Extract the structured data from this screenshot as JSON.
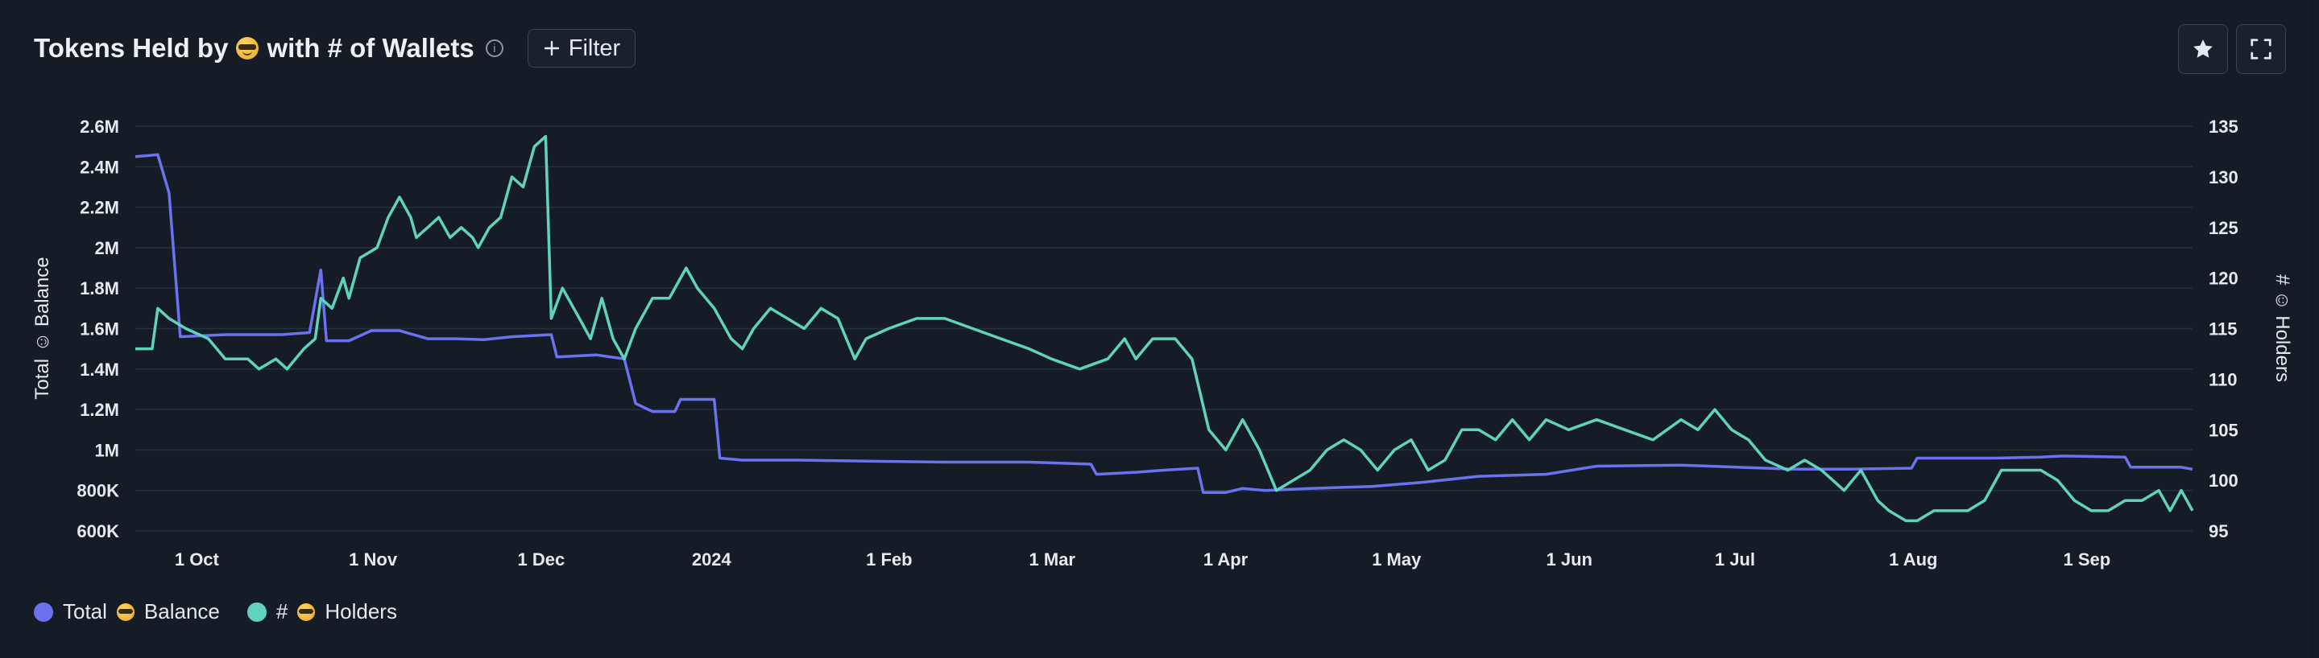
{
  "header": {
    "title_before": "Tokens Held by",
    "title_after": "with # of Wallets",
    "info_icon": "info-icon",
    "filter_label": "Filter",
    "star_icon": "star-icon",
    "expand_icon": "expand-icon"
  },
  "colors": {
    "balance": "#6b72ee",
    "holders": "#5fd3be",
    "grid": "#1f3246",
    "background": "#151c26"
  },
  "chart_data": {
    "type": "line",
    "x_start": "2023-09-24",
    "x_end": "2024-09-24",
    "x_ticks": [
      {
        "label": "1 Oct",
        "date": "2023-10-01"
      },
      {
        "label": "1 Nov",
        "date": "2023-11-01"
      },
      {
        "label": "1 Dec",
        "date": "2023-12-01"
      },
      {
        "label": "2024",
        "date": "2024-01-01"
      },
      {
        "label": "1 Feb",
        "date": "2024-02-01"
      },
      {
        "label": "1 Mar",
        "date": "2024-03-01"
      },
      {
        "label": "1 Apr",
        "date": "2024-04-01"
      },
      {
        "label": "1 May",
        "date": "2024-05-01"
      },
      {
        "label": "1 Jun",
        "date": "2024-06-01"
      },
      {
        "label": "1 Jul",
        "date": "2024-07-01"
      },
      {
        "label": "1 Aug",
        "date": "2024-08-01"
      },
      {
        "label": "1 Sep",
        "date": "2024-09-01"
      }
    ],
    "y_left": {
      "title": "Total Balance",
      "min": 600000,
      "max": 2600000,
      "ticks": [
        600000,
        800000,
        1000000,
        1200000,
        1400000,
        1600000,
        1800000,
        2000000,
        2200000,
        2400000,
        2600000
      ],
      "tick_labels": [
        "600K",
        "800K",
        "1M",
        "1.2M",
        "1.4M",
        "1.6M",
        "1.8M",
        "2M",
        "2.2M",
        "2.4M",
        "2.6M"
      ]
    },
    "y_right": {
      "title": "# Holders",
      "min": 95,
      "max": 135,
      "ticks": [
        95,
        100,
        105,
        110,
        115,
        120,
        125,
        130,
        135
      ],
      "tick_labels": [
        "95",
        "100",
        "105",
        "110",
        "115",
        "120",
        "125",
        "130",
        "135"
      ]
    },
    "grid": true,
    "legend_position": "bottom-left",
    "series": [
      {
        "name": "Total Balance",
        "axis": "left",
        "color": "#6b72ee",
        "points": [
          [
            "2023-09-24",
            2450000
          ],
          [
            "2023-09-28",
            2460000
          ],
          [
            "2023-09-30",
            2270000
          ],
          [
            "2023-10-02",
            1560000
          ],
          [
            "2023-10-10",
            1570000
          ],
          [
            "2023-10-20",
            1570000
          ],
          [
            "2023-10-25",
            1580000
          ],
          [
            "2023-10-27",
            1890000
          ],
          [
            "2023-10-28",
            1540000
          ],
          [
            "2023-11-01",
            1540000
          ],
          [
            "2023-11-05",
            1590000
          ],
          [
            "2023-11-10",
            1590000
          ],
          [
            "2023-11-15",
            1550000
          ],
          [
            "2023-11-20",
            1550000
          ],
          [
            "2023-11-25",
            1545000
          ],
          [
            "2023-11-30",
            1560000
          ],
          [
            "2023-12-07",
            1570000
          ],
          [
            "2023-12-08",
            1460000
          ],
          [
            "2023-12-15",
            1470000
          ],
          [
            "2023-12-20",
            1450000
          ],
          [
            "2023-12-22",
            1230000
          ],
          [
            "2023-12-25",
            1190000
          ],
          [
            "2023-12-29",
            1190000
          ],
          [
            "2023-12-30",
            1250000
          ],
          [
            "2024-01-05",
            1250000
          ],
          [
            "2024-01-06",
            960000
          ],
          [
            "2024-01-10",
            950000
          ],
          [
            "2024-01-20",
            950000
          ],
          [
            "2024-02-01",
            945000
          ],
          [
            "2024-02-15",
            940000
          ],
          [
            "2024-03-01",
            940000
          ],
          [
            "2024-03-12",
            930000
          ],
          [
            "2024-03-13",
            880000
          ],
          [
            "2024-03-20",
            890000
          ],
          [
            "2024-03-25",
            900000
          ],
          [
            "2024-03-31",
            910000
          ],
          [
            "2024-04-01",
            790000
          ],
          [
            "2024-04-05",
            790000
          ],
          [
            "2024-04-08",
            810000
          ],
          [
            "2024-04-12",
            800000
          ],
          [
            "2024-04-20",
            810000
          ],
          [
            "2024-05-01",
            820000
          ],
          [
            "2024-05-10",
            840000
          ],
          [
            "2024-05-20",
            870000
          ],
          [
            "2024-06-01",
            880000
          ],
          [
            "2024-06-10",
            920000
          ],
          [
            "2024-06-25",
            925000
          ],
          [
            "2024-07-05",
            915000
          ],
          [
            "2024-07-15",
            905000
          ],
          [
            "2024-07-25",
            905000
          ],
          [
            "2024-08-05",
            910000
          ],
          [
            "2024-08-06",
            960000
          ],
          [
            "2024-08-20",
            960000
          ],
          [
            "2024-08-28",
            965000
          ],
          [
            "2024-09-01",
            970000
          ],
          [
            "2024-09-12",
            965000
          ],
          [
            "2024-09-13",
            915000
          ],
          [
            "2024-09-22",
            915000
          ],
          [
            "2024-09-24",
            905000
          ]
        ]
      },
      {
        "name": "# Holders",
        "axis": "right",
        "color": "#5fd3be",
        "points": [
          [
            "2023-09-24",
            113
          ],
          [
            "2023-09-27",
            113
          ],
          [
            "2023-09-28",
            117
          ],
          [
            "2023-09-30",
            116
          ],
          [
            "2023-10-03",
            115
          ],
          [
            "2023-10-07",
            114
          ],
          [
            "2023-10-10",
            112
          ],
          [
            "2023-10-14",
            112
          ],
          [
            "2023-10-16",
            111
          ],
          [
            "2023-10-19",
            112
          ],
          [
            "2023-10-21",
            111
          ],
          [
            "2023-10-24",
            113
          ],
          [
            "2023-10-26",
            114
          ],
          [
            "2023-10-27",
            118
          ],
          [
            "2023-10-29",
            117
          ],
          [
            "2023-10-31",
            120
          ],
          [
            "2023-11-01",
            118
          ],
          [
            "2023-11-03",
            122
          ],
          [
            "2023-11-06",
            123
          ],
          [
            "2023-11-08",
            126
          ],
          [
            "2023-11-10",
            128
          ],
          [
            "2023-11-12",
            126
          ],
          [
            "2023-11-13",
            124
          ],
          [
            "2023-11-15",
            125
          ],
          [
            "2023-11-17",
            126
          ],
          [
            "2023-11-19",
            124
          ],
          [
            "2023-11-21",
            125
          ],
          [
            "2023-11-23",
            124
          ],
          [
            "2023-11-24",
            123
          ],
          [
            "2023-11-26",
            125
          ],
          [
            "2023-11-28",
            126
          ],
          [
            "2023-11-30",
            130
          ],
          [
            "2023-12-02",
            129
          ],
          [
            "2023-12-04",
            133
          ],
          [
            "2023-12-06",
            134
          ],
          [
            "2023-12-07",
            116
          ],
          [
            "2023-12-09",
            119
          ],
          [
            "2023-12-12",
            116
          ],
          [
            "2023-12-14",
            114
          ],
          [
            "2023-12-16",
            118
          ],
          [
            "2023-12-18",
            114
          ],
          [
            "2023-12-20",
            112
          ],
          [
            "2023-12-22",
            115
          ],
          [
            "2023-12-25",
            118
          ],
          [
            "2023-12-28",
            118
          ],
          [
            "2023-12-31",
            121
          ],
          [
            "2024-01-02",
            119
          ],
          [
            "2024-01-05",
            117
          ],
          [
            "2024-01-08",
            114
          ],
          [
            "2024-01-10",
            113
          ],
          [
            "2024-01-12",
            115
          ],
          [
            "2024-01-15",
            117
          ],
          [
            "2024-01-18",
            116
          ],
          [
            "2024-01-21",
            115
          ],
          [
            "2024-01-24",
            117
          ],
          [
            "2024-01-27",
            116
          ],
          [
            "2024-01-30",
            112
          ],
          [
            "2024-02-01",
            114
          ],
          [
            "2024-02-05",
            115
          ],
          [
            "2024-02-10",
            116
          ],
          [
            "2024-02-15",
            116
          ],
          [
            "2024-02-20",
            115
          ],
          [
            "2024-02-25",
            114
          ],
          [
            "2024-03-01",
            113
          ],
          [
            "2024-03-05",
            112
          ],
          [
            "2024-03-10",
            111
          ],
          [
            "2024-03-15",
            112
          ],
          [
            "2024-03-18",
            114
          ],
          [
            "2024-03-20",
            112
          ],
          [
            "2024-03-23",
            114
          ],
          [
            "2024-03-27",
            114
          ],
          [
            "2024-03-30",
            112
          ],
          [
            "2024-04-02",
            105
          ],
          [
            "2024-04-05",
            103
          ],
          [
            "2024-04-08",
            106
          ],
          [
            "2024-04-11",
            103
          ],
          [
            "2024-04-14",
            99
          ],
          [
            "2024-04-17",
            100
          ],
          [
            "2024-04-20",
            101
          ],
          [
            "2024-04-23",
            103
          ],
          [
            "2024-04-26",
            104
          ],
          [
            "2024-04-29",
            103
          ],
          [
            "2024-05-02",
            101
          ],
          [
            "2024-05-05",
            103
          ],
          [
            "2024-05-08",
            104
          ],
          [
            "2024-05-11",
            101
          ],
          [
            "2024-05-14",
            102
          ],
          [
            "2024-05-17",
            105
          ],
          [
            "2024-05-20",
            105
          ],
          [
            "2024-05-23",
            104
          ],
          [
            "2024-05-26",
            106
          ],
          [
            "2024-05-29",
            104
          ],
          [
            "2024-06-01",
            106
          ],
          [
            "2024-06-05",
            105
          ],
          [
            "2024-06-10",
            106
          ],
          [
            "2024-06-15",
            105
          ],
          [
            "2024-06-20",
            104
          ],
          [
            "2024-06-25",
            106
          ],
          [
            "2024-06-28",
            105
          ],
          [
            "2024-07-01",
            107
          ],
          [
            "2024-07-04",
            105
          ],
          [
            "2024-07-07",
            104
          ],
          [
            "2024-07-10",
            102
          ],
          [
            "2024-07-14",
            101
          ],
          [
            "2024-07-17",
            102
          ],
          [
            "2024-07-20",
            101
          ],
          [
            "2024-07-24",
            99
          ],
          [
            "2024-07-27",
            101
          ],
          [
            "2024-07-30",
            98
          ],
          [
            "2024-08-01",
            97
          ],
          [
            "2024-08-04",
            96
          ],
          [
            "2024-08-06",
            96
          ],
          [
            "2024-08-09",
            97
          ],
          [
            "2024-08-15",
            97
          ],
          [
            "2024-08-18",
            98
          ],
          [
            "2024-08-21",
            101
          ],
          [
            "2024-08-25",
            101
          ],
          [
            "2024-08-28",
            101
          ],
          [
            "2024-08-31",
            100
          ],
          [
            "2024-09-03",
            98
          ],
          [
            "2024-09-06",
            97
          ],
          [
            "2024-09-09",
            97
          ],
          [
            "2024-09-12",
            98
          ],
          [
            "2024-09-15",
            98
          ],
          [
            "2024-09-18",
            99
          ],
          [
            "2024-09-20",
            97
          ],
          [
            "2024-09-22",
            99
          ],
          [
            "2024-09-23",
            98
          ],
          [
            "2024-09-24",
            97
          ]
        ]
      }
    ]
  },
  "legend": [
    {
      "before": "Total",
      "after": "Balance",
      "color": "#6b72ee"
    },
    {
      "before": "#",
      "after": "Holders",
      "color": "#5fd3be"
    }
  ]
}
